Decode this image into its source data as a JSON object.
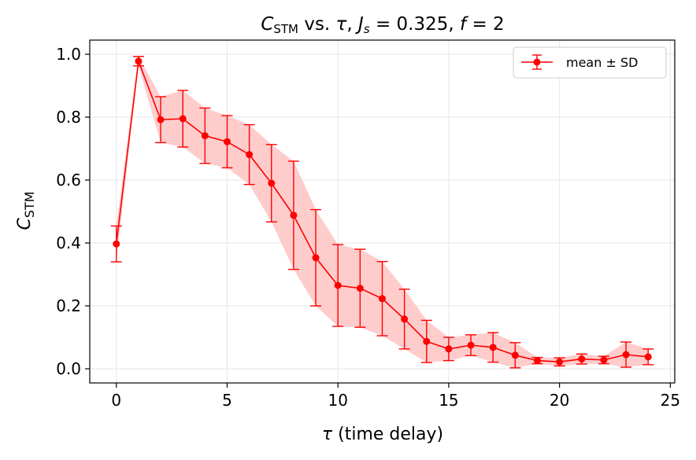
{
  "chart_data": {
    "type": "line",
    "title_parts": {
      "c_symbol": "C",
      "c_sub": "STM",
      "vs_text": " vs. ",
      "tau_symbol": "τ",
      "sep1": ", ",
      "j_symbol": "J",
      "j_sub": "s",
      "j_eq": " = 0.325",
      "sep2": ", ",
      "f_symbol": "f",
      "f_eq": " = 2"
    },
    "xlabel_parts": {
      "symbol": "τ",
      "text": " (time delay)"
    },
    "ylabel_parts": {
      "symbol": "C",
      "sub": "STM"
    },
    "xlim": [
      -1.2,
      25.2
    ],
    "ylim": [
      -0.045,
      1.045
    ],
    "xticks": [
      0,
      5,
      10,
      15,
      20,
      25
    ],
    "xtick_labels": [
      "0",
      "5",
      "10",
      "15",
      "20",
      "25"
    ],
    "yticks": [
      0.0,
      0.2,
      0.4,
      0.6,
      0.8,
      1.0
    ],
    "ytick_labels": [
      "0.0",
      "0.2",
      "0.4",
      "0.6",
      "0.8",
      "1.0"
    ],
    "grid": true,
    "legend_position": "top-right",
    "legend_label": "mean ± SD",
    "colors": {
      "series": "#ff0000",
      "band": "#ffcccc",
      "grid": "#e6e6e6"
    },
    "series": [
      {
        "name": "mean ± SD",
        "x": [
          0,
          1,
          2,
          3,
          4,
          5,
          6,
          7,
          8,
          9,
          10,
          11,
          12,
          13,
          14,
          15,
          16,
          17,
          18,
          19,
          20,
          21,
          22,
          23,
          24
        ],
        "values": [
          0.397,
          0.978,
          0.792,
          0.795,
          0.741,
          0.722,
          0.681,
          0.59,
          0.488,
          0.353,
          0.265,
          0.256,
          0.223,
          0.158,
          0.087,
          0.063,
          0.075,
          0.068,
          0.043,
          0.026,
          0.022,
          0.031,
          0.028,
          0.045,
          0.038
        ],
        "sd": [
          0.057,
          0.015,
          0.073,
          0.09,
          0.088,
          0.083,
          0.095,
          0.123,
          0.172,
          0.153,
          0.13,
          0.124,
          0.118,
          0.095,
          0.067,
          0.037,
          0.033,
          0.047,
          0.04,
          0.01,
          0.013,
          0.016,
          0.012,
          0.04,
          0.025
        ]
      }
    ]
  }
}
